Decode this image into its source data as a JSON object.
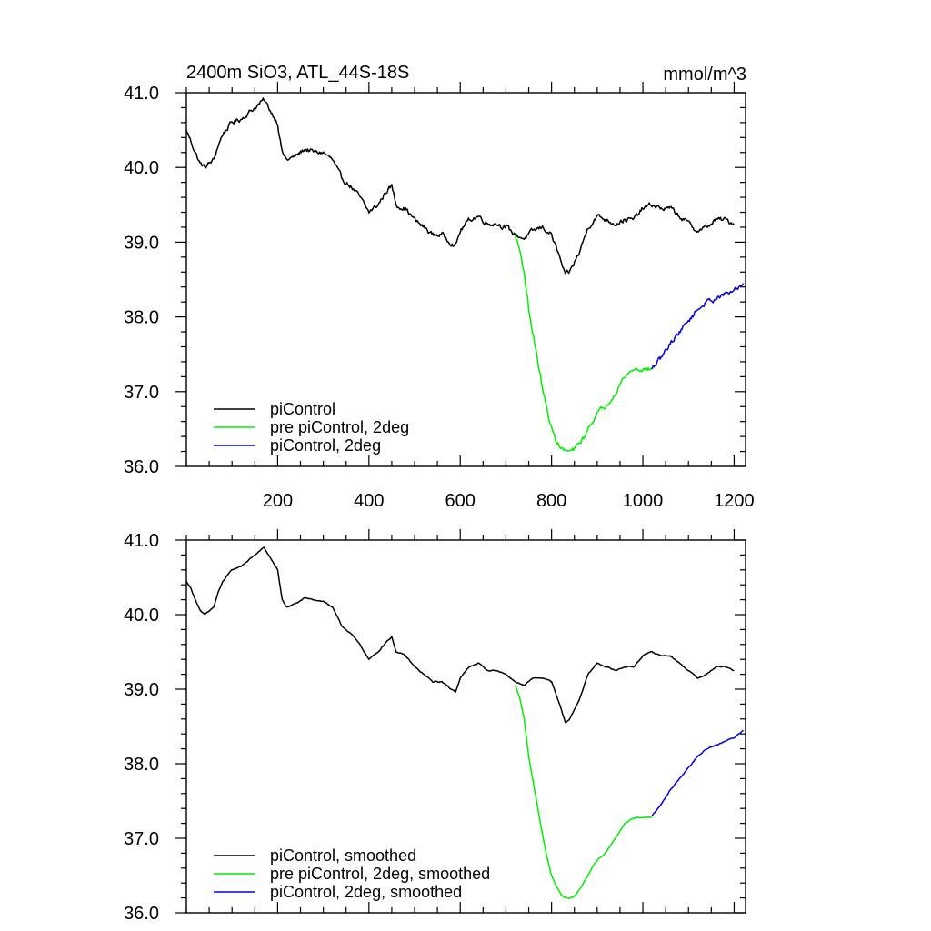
{
  "figure": {
    "title_left": "2400m SiO3, ATL_44S-18S",
    "title_right": "mmol/m^3"
  },
  "colors": {
    "piControl": "#000000",
    "pre_piControl_2deg": "#00ee00",
    "piControl_2deg": "#0000dd",
    "axis": "#000000"
  },
  "chart_data": [
    {
      "type": "line",
      "panel": "top",
      "title": "2400m SiO3, ATL_44S-18S",
      "units_label": "mmol/m^3",
      "xlim": [
        0,
        1225
      ],
      "ylim": [
        36.0,
        41.0
      ],
      "xticks": [
        200,
        400,
        600,
        800,
        1000,
        1200
      ],
      "xtick_labels": [
        "200",
        "400",
        "600",
        "800",
        "1000",
        "1200"
      ],
      "yticks": [
        36.0,
        37.0,
        38.0,
        39.0,
        40.0,
        41.0
      ],
      "ytick_labels": [
        "36.0",
        "37.0",
        "38.0",
        "39.0",
        "40.0",
        "41.0"
      ],
      "legend_position": "bottom-left",
      "noise": 0.055,
      "series": [
        {
          "name": "piControl",
          "color": "#000000",
          "x": [
            0,
            10,
            20,
            30,
            40,
            50,
            60,
            70,
            80,
            100,
            120,
            140,
            160,
            170,
            180,
            200,
            210,
            220,
            240,
            260,
            280,
            300,
            320,
            340,
            360,
            380,
            400,
            420,
            440,
            450,
            460,
            480,
            500,
            520,
            540,
            560,
            580,
            590,
            600,
            620,
            640,
            660,
            680,
            700,
            720,
            740,
            760,
            780,
            800,
            820,
            830,
            840,
            860,
            880,
            900,
            920,
            940,
            960,
            980,
            1000,
            1020,
            1040,
            1060,
            1080,
            1100,
            1120,
            1140,
            1160,
            1180,
            1200
          ],
          "y": [
            40.5,
            40.35,
            40.2,
            40.05,
            40.0,
            40.05,
            40.1,
            40.3,
            40.45,
            40.6,
            40.65,
            40.75,
            40.85,
            40.9,
            40.8,
            40.6,
            40.2,
            40.1,
            40.15,
            40.25,
            40.2,
            40.2,
            40.1,
            39.85,
            39.75,
            39.6,
            39.4,
            39.5,
            39.7,
            39.75,
            39.5,
            39.45,
            39.3,
            39.2,
            39.1,
            39.1,
            39.0,
            38.95,
            39.15,
            39.3,
            39.35,
            39.25,
            39.25,
            39.2,
            39.1,
            39.05,
            39.15,
            39.2,
            39.1,
            38.75,
            38.55,
            38.6,
            38.85,
            39.2,
            39.35,
            39.3,
            39.25,
            39.3,
            39.3,
            39.45,
            39.5,
            39.45,
            39.45,
            39.35,
            39.25,
            39.15,
            39.2,
            39.3,
            39.3,
            39.25
          ]
        },
        {
          "name": "pre piControl, 2deg",
          "color": "#00ee00",
          "x": [
            720,
            730,
            740,
            750,
            760,
            770,
            780,
            790,
            800,
            810,
            820,
            830,
            840,
            850,
            860,
            870,
            880,
            890,
            900,
            920,
            940,
            960,
            980,
            1000,
            1020
          ],
          "y": [
            39.1,
            38.9,
            38.6,
            38.1,
            37.75,
            37.4,
            37.05,
            36.75,
            36.5,
            36.35,
            36.25,
            36.2,
            36.2,
            36.22,
            36.3,
            36.38,
            36.5,
            36.62,
            36.7,
            36.82,
            37.0,
            37.2,
            37.3,
            37.3,
            37.3
          ]
        },
        {
          "name": "piControl, 2deg",
          "color": "#0000dd",
          "x": [
            1020,
            1040,
            1060,
            1080,
            1100,
            1120,
            1140,
            1160,
            1180,
            1200,
            1220
          ],
          "y": [
            37.3,
            37.45,
            37.65,
            37.8,
            37.95,
            38.1,
            38.2,
            38.25,
            38.3,
            38.35,
            38.45
          ]
        }
      ]
    },
    {
      "type": "line",
      "panel": "bottom",
      "xlim": [
        0,
        1225
      ],
      "ylim": [
        36.0,
        41.0
      ],
      "xticks": [
        200,
        400,
        600,
        800,
        1000,
        1200
      ],
      "yticks": [
        36.0,
        37.0,
        38.0,
        39.0,
        40.0,
        41.0
      ],
      "ytick_labels": [
        "36.0",
        "37.0",
        "38.0",
        "39.0",
        "40.0",
        "41.0"
      ],
      "legend_position": "bottom-left",
      "noise": 0.012,
      "series": [
        {
          "name": "piControl, smoothed",
          "color": "#000000",
          "x": [
            0,
            10,
            20,
            30,
            40,
            50,
            60,
            70,
            80,
            100,
            120,
            140,
            160,
            170,
            180,
            200,
            210,
            220,
            240,
            260,
            280,
            300,
            320,
            340,
            360,
            380,
            400,
            420,
            440,
            450,
            460,
            480,
            500,
            520,
            540,
            560,
            580,
            590,
            600,
            620,
            640,
            660,
            680,
            700,
            720,
            740,
            760,
            780,
            800,
            820,
            830,
            840,
            860,
            880,
            900,
            920,
            940,
            960,
            980,
            1000,
            1020,
            1040,
            1060,
            1080,
            1100,
            1120,
            1140,
            1160,
            1180,
            1200
          ],
          "y": [
            40.45,
            40.35,
            40.2,
            40.05,
            40.0,
            40.05,
            40.1,
            40.3,
            40.45,
            40.6,
            40.65,
            40.75,
            40.85,
            40.9,
            40.8,
            40.6,
            40.2,
            40.1,
            40.15,
            40.22,
            40.2,
            40.18,
            40.1,
            39.85,
            39.75,
            39.6,
            39.4,
            39.5,
            39.65,
            39.7,
            39.5,
            39.45,
            39.3,
            39.2,
            39.1,
            39.1,
            39.0,
            38.97,
            39.15,
            39.3,
            39.35,
            39.25,
            39.25,
            39.2,
            39.1,
            39.05,
            39.15,
            39.15,
            39.1,
            38.75,
            38.55,
            38.6,
            38.85,
            39.2,
            39.35,
            39.3,
            39.25,
            39.3,
            39.3,
            39.45,
            39.5,
            39.45,
            39.45,
            39.35,
            39.25,
            39.15,
            39.2,
            39.3,
            39.3,
            39.25
          ]
        },
        {
          "name": "pre piControl, 2deg, smoothed",
          "color": "#00ee00",
          "x": [
            720,
            730,
            740,
            750,
            760,
            770,
            780,
            790,
            800,
            810,
            820,
            830,
            840,
            850,
            860,
            870,
            880,
            890,
            900,
            920,
            940,
            960,
            980,
            1000,
            1020
          ],
          "y": [
            39.05,
            38.9,
            38.6,
            38.1,
            37.75,
            37.4,
            37.05,
            36.75,
            36.5,
            36.35,
            36.25,
            36.2,
            36.2,
            36.22,
            36.3,
            36.4,
            36.5,
            36.62,
            36.7,
            36.82,
            37.0,
            37.2,
            37.28,
            37.28,
            37.28
          ]
        },
        {
          "name": "piControl, 2deg, smoothed",
          "color": "#0000dd",
          "x": [
            1020,
            1040,
            1060,
            1080,
            1100,
            1120,
            1140,
            1160,
            1180,
            1200,
            1220
          ],
          "y": [
            37.3,
            37.45,
            37.65,
            37.8,
            37.95,
            38.1,
            38.2,
            38.25,
            38.3,
            38.35,
            38.45
          ]
        }
      ]
    }
  ]
}
